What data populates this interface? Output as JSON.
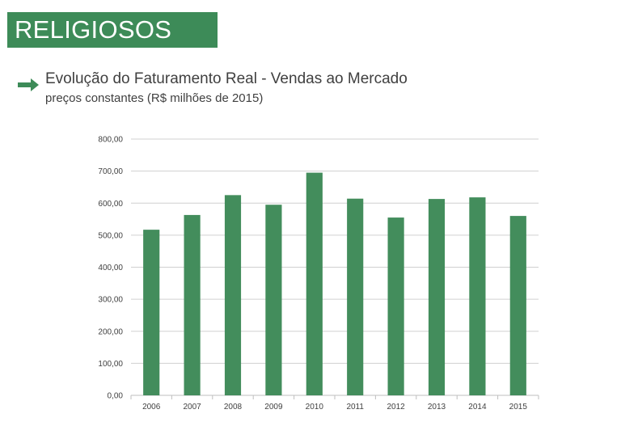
{
  "header": {
    "banner": "RELIGIOSOS",
    "title": "Evolução do Faturamento Real - Vendas ao Mercado",
    "subtitle": "preços constantes (R$ milhões de 2015)"
  },
  "colors": {
    "brand_green": "#3d8b58",
    "bar": "#438d5c",
    "grid": "#d0d0d0"
  },
  "icons": {
    "bullet": "right-arrow-icon"
  },
  "chart_data": {
    "type": "bar",
    "categories": [
      "2006",
      "2007",
      "2008",
      "2009",
      "2010",
      "2011",
      "2012",
      "2013",
      "2014",
      "2015"
    ],
    "values": [
      517,
      563,
      625,
      595,
      695,
      614,
      555,
      613,
      618,
      560
    ],
    "ylim": [
      0,
      800
    ],
    "yticks": [
      0,
      100,
      200,
      300,
      400,
      500,
      600,
      700,
      800
    ],
    "ytick_labels": [
      "0,00",
      "100,00",
      "200,00",
      "300,00",
      "400,00",
      "500,00",
      "600,00",
      "700,00",
      "800,00"
    ],
    "grid": true,
    "legend": "none"
  }
}
